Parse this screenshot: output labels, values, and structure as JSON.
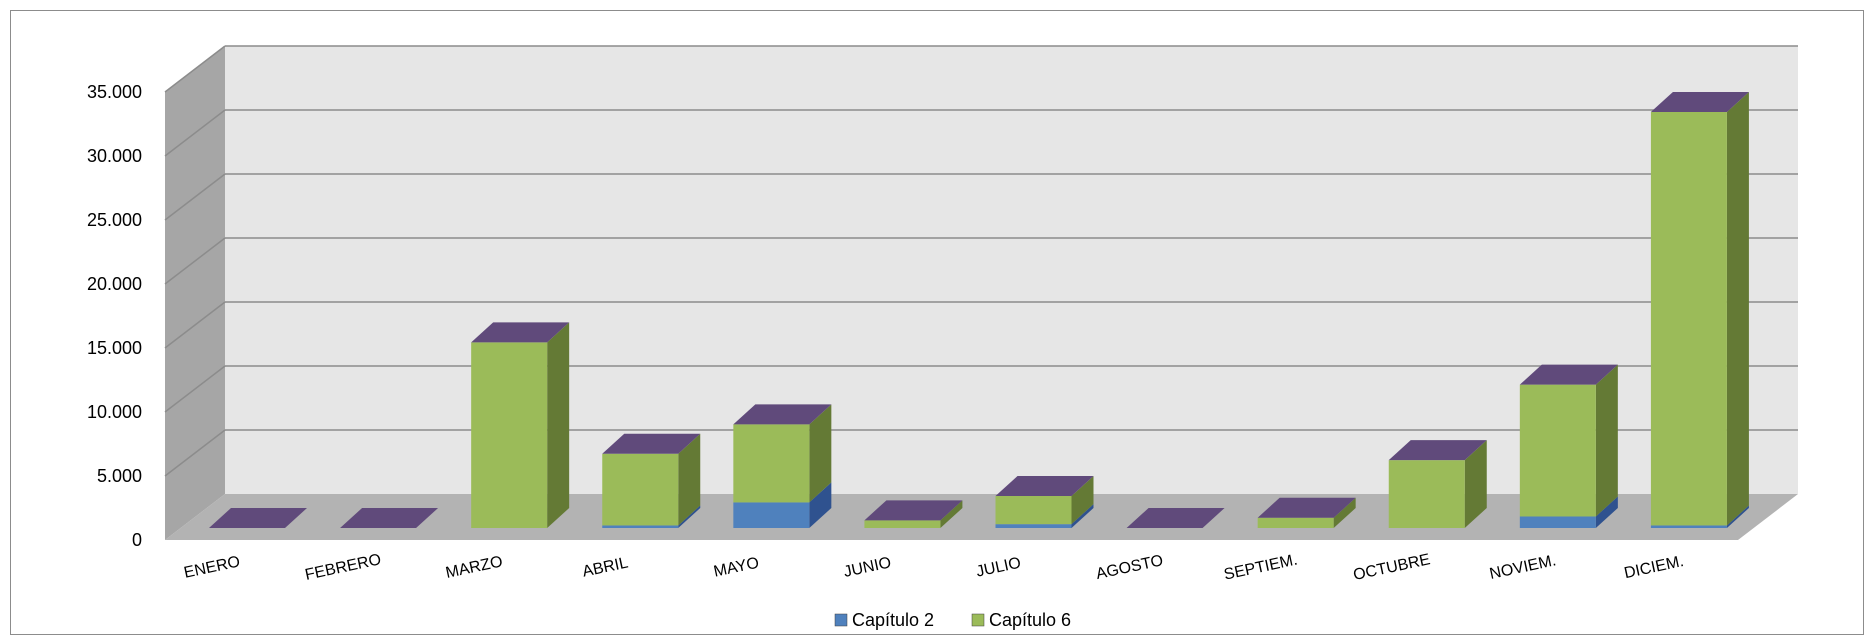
{
  "chart_data": {
    "type": "bar",
    "stacked": true,
    "three_d": true,
    "categories": [
      "ENERO",
      "FEBRERO",
      "MARZO",
      "ABRIL",
      "MAYO",
      "JUNIO",
      "JULIO",
      "AGOSTO",
      "SEPTIEM.",
      "OCTUBRE",
      "NOVIEM.",
      "DICIEM."
    ],
    "series": [
      {
        "name": "Capítulo 2",
        "values": [
          0,
          0,
          0,
          200,
          2000,
          0,
          300,
          0,
          0,
          0,
          900,
          200
        ]
      },
      {
        "name": "Capítulo 6",
        "values": [
          0,
          0,
          14500,
          5600,
          6100,
          600,
          2200,
          0,
          800,
          5300,
          10300,
          32300
        ]
      }
    ],
    "ylim": [
      0,
      35000
    ],
    "yticks": [
      0,
      5000,
      10000,
      15000,
      20000,
      25000,
      30000,
      35000
    ],
    "ytick_labels": [
      "0",
      "5.000",
      "10.000",
      "15.000",
      "20.000",
      "25.000",
      "30.000",
      "35.000"
    ],
    "grid": true,
    "legend": "bottom",
    "colors": {
      "capitulo2_front": "#4f81bd",
      "capitulo2_side": "#2f528f",
      "capitulo6_front": "#9bbb59",
      "capitulo6_side": "#647a35",
      "bar_top": "#604a7b",
      "back_wall": "#e6e6e6",
      "side_wall": "#a6a6a6",
      "floor": "#b3b3b3",
      "gridline": "#8c8c8c"
    }
  }
}
